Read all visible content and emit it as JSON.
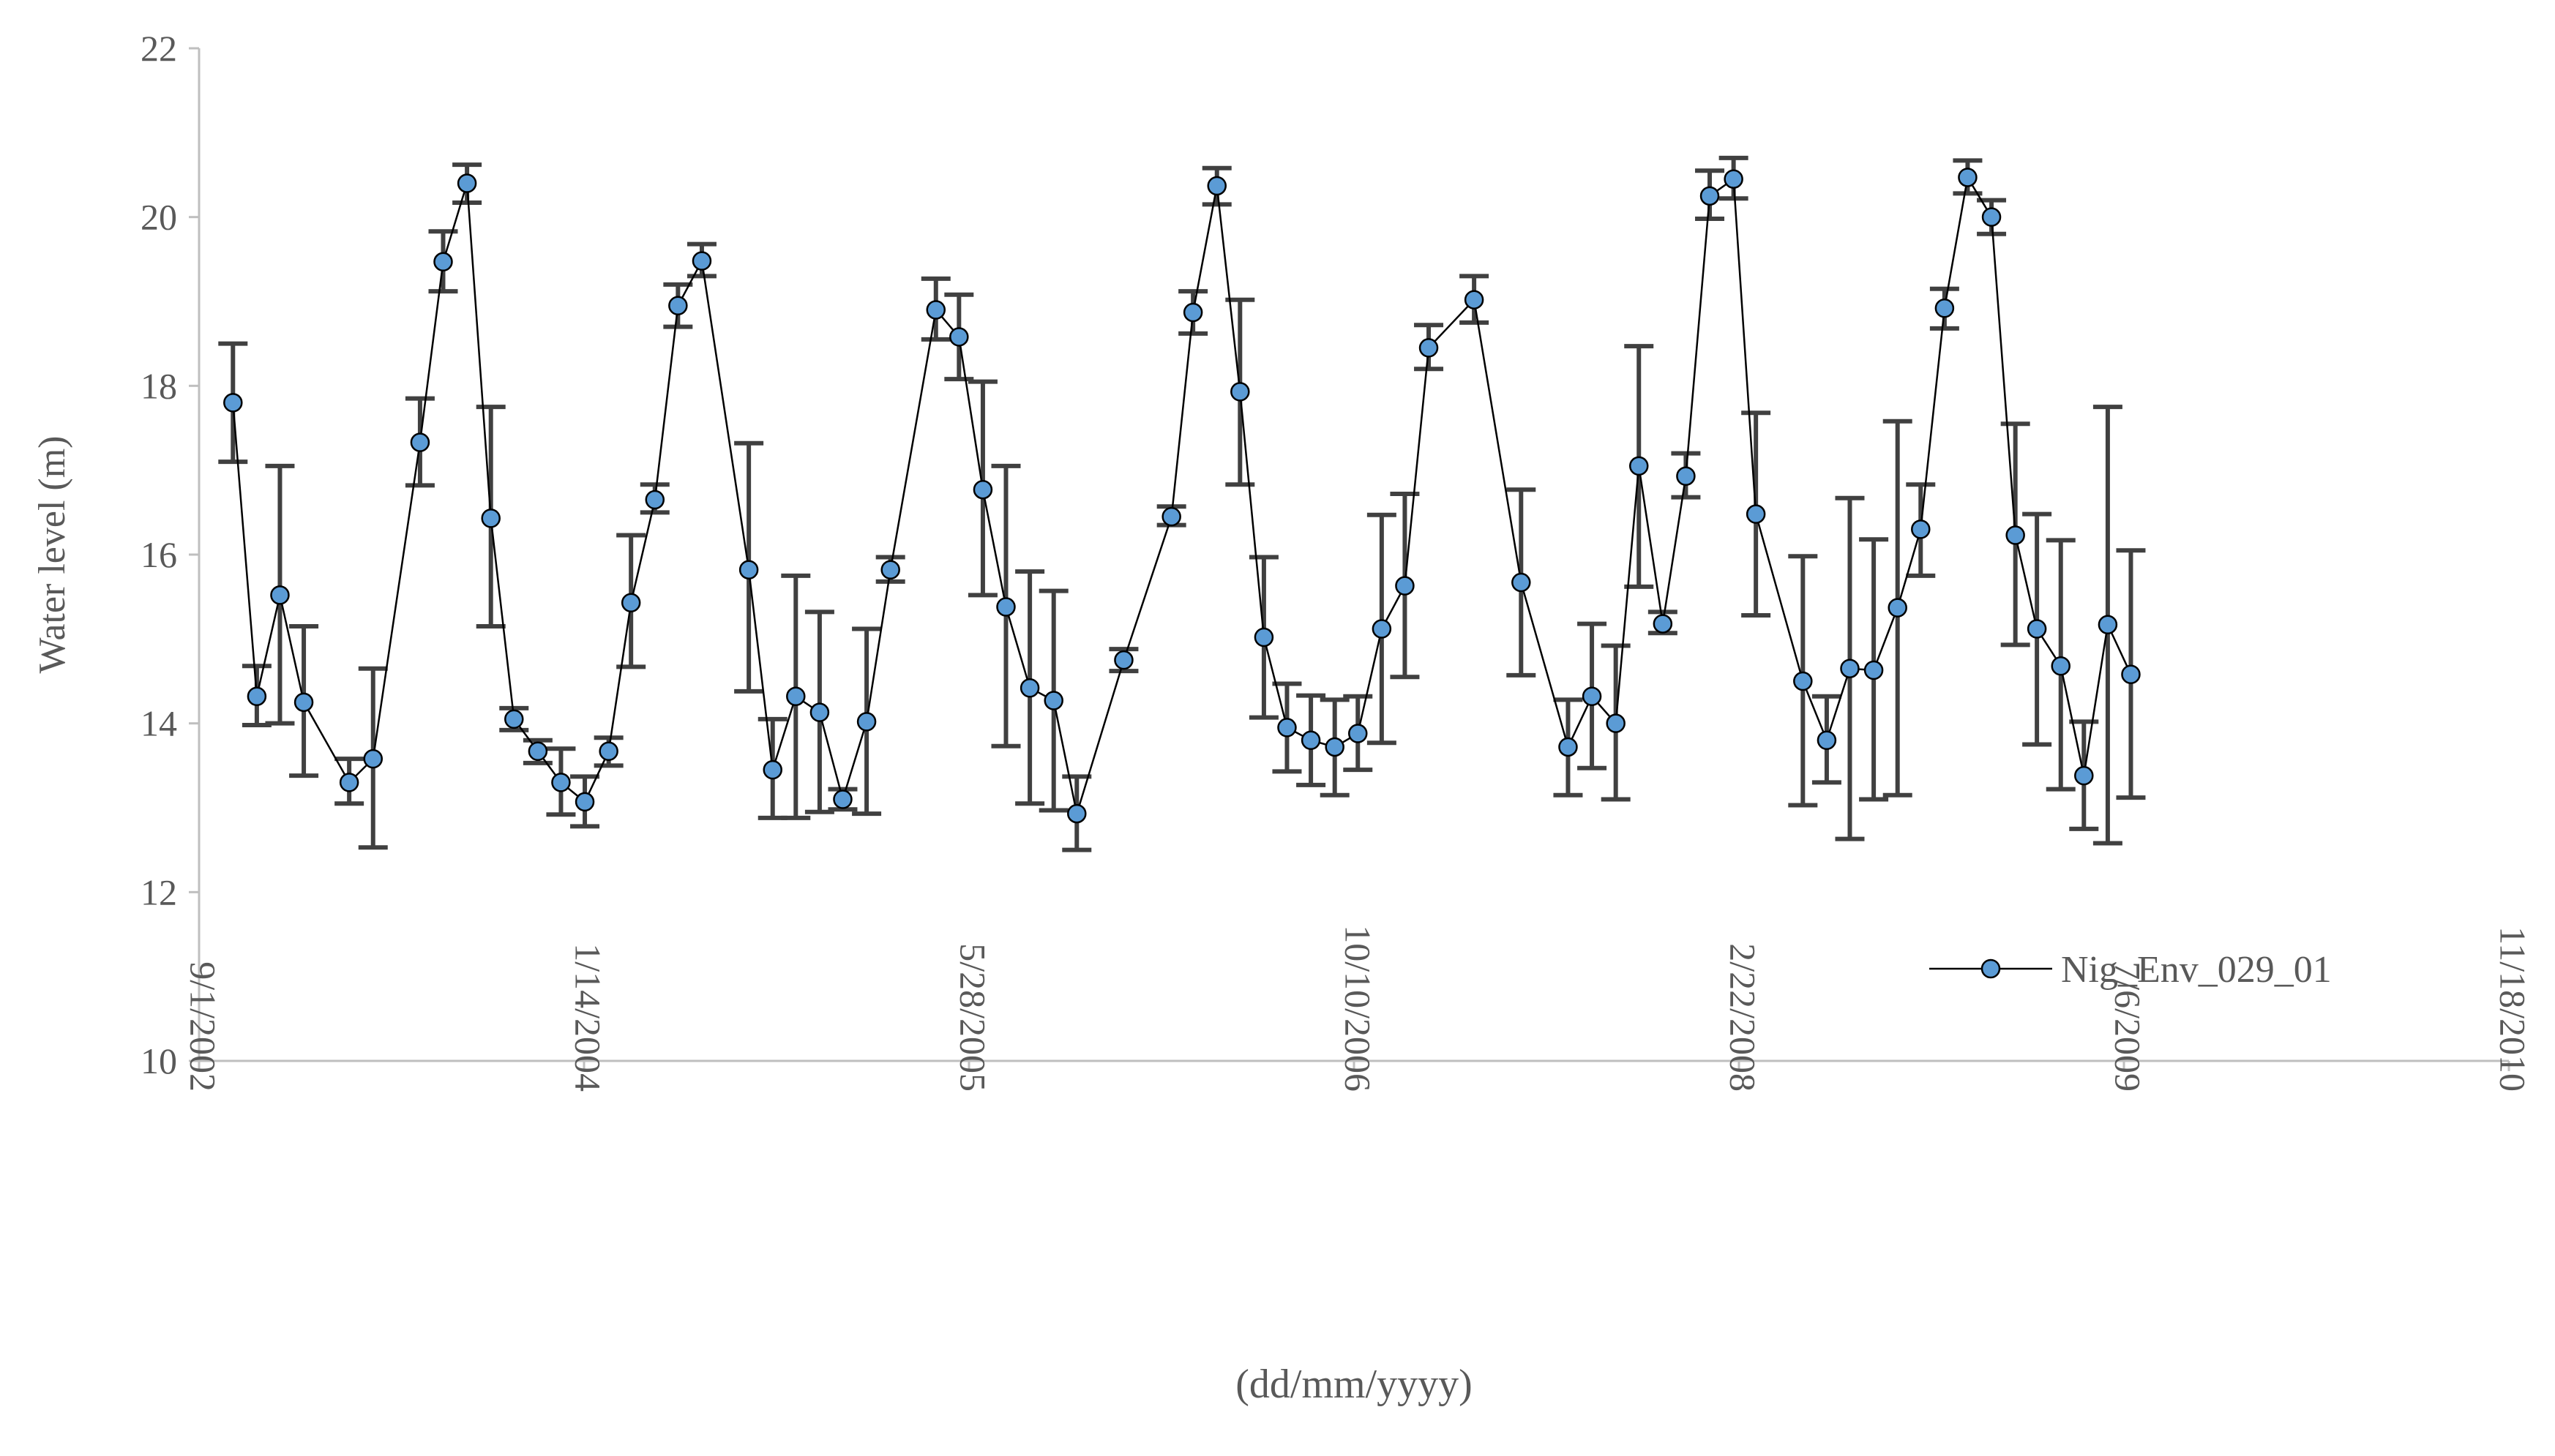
{
  "chart_data": {
    "type": "line",
    "title": "",
    "xlabel": "(dd/mm/yyyy)",
    "ylabel": "Water level (m)",
    "ylim": [
      10,
      22
    ],
    "yticks": [
      10,
      12,
      14,
      16,
      18,
      20,
      22
    ],
    "xlim": [
      "2002-09-01",
      "2010-11-18"
    ],
    "xticks": [
      {
        "label": "9/1/2002",
        "date": "2002-09-01"
      },
      {
        "label": "1/14/2004",
        "date": "2004-01-14"
      },
      {
        "label": "5/28/2005",
        "date": "2005-05-28"
      },
      {
        "label": "10/10/2006",
        "date": "2006-10-10"
      },
      {
        "label": "2/22/2008",
        "date": "2008-02-22"
      },
      {
        "label": "7/6/2009",
        "date": "2009-07-06"
      },
      {
        "label": "11/18/2010",
        "date": "2010-11-18"
      }
    ],
    "grid": false,
    "legend_position": "bottom-right",
    "colors": {
      "marker_fill": "#5b9bd5",
      "line": "#000000",
      "error_bar": "#404040",
      "axis": "#bfbfbf",
      "text": "#595959"
    },
    "series": [
      {
        "name": "Nig_Env_029_01",
        "points": [
          {
            "x": "2002-10-15",
            "y": 17.8,
            "lo": 17.1,
            "hi": 18.5
          },
          {
            "x": "2002-11-15",
            "y": 14.32,
            "lo": 13.98,
            "hi": 14.68
          },
          {
            "x": "2002-12-15",
            "y": 15.52,
            "lo": 14.0,
            "hi": 17.05
          },
          {
            "x": "2003-01-15",
            "y": 14.25,
            "lo": 13.38,
            "hi": 15.15
          },
          {
            "x": "2003-03-15",
            "y": 13.3,
            "lo": 13.05,
            "hi": 13.58
          },
          {
            "x": "2003-04-15",
            "y": 13.58,
            "lo": 12.53,
            "hi": 14.65
          },
          {
            "x": "2003-06-15",
            "y": 17.33,
            "lo": 16.82,
            "hi": 17.85
          },
          {
            "x": "2003-07-15",
            "y": 19.47,
            "lo": 19.12,
            "hi": 19.83
          },
          {
            "x": "2003-08-15",
            "y": 20.4,
            "lo": 20.17,
            "hi": 20.62
          },
          {
            "x": "2003-09-15",
            "y": 16.43,
            "lo": 15.15,
            "hi": 17.75
          },
          {
            "x": "2003-10-15",
            "y": 14.05,
            "lo": 13.92,
            "hi": 14.18
          },
          {
            "x": "2003-11-15",
            "y": 13.67,
            "lo": 13.53,
            "hi": 13.8
          },
          {
            "x": "2003-12-15",
            "y": 13.3,
            "lo": 12.92,
            "hi": 13.7
          },
          {
            "x": "2004-01-15",
            "y": 13.07,
            "lo": 12.78,
            "hi": 13.37
          },
          {
            "x": "2004-02-15",
            "y": 13.67,
            "lo": 13.5,
            "hi": 13.83
          },
          {
            "x": "2004-03-15",
            "y": 15.43,
            "lo": 14.67,
            "hi": 16.23
          },
          {
            "x": "2004-04-15",
            "y": 16.65,
            "lo": 16.5,
            "hi": 16.83
          },
          {
            "x": "2004-05-15",
            "y": 18.95,
            "lo": 18.7,
            "hi": 19.2
          },
          {
            "x": "2004-06-15",
            "y": 19.48,
            "lo": 19.3,
            "hi": 19.68
          },
          {
            "x": "2004-08-15",
            "y": 15.82,
            "lo": 14.38,
            "hi": 17.32
          },
          {
            "x": "2004-09-15",
            "y": 13.45,
            "lo": 12.88,
            "hi": 14.05
          },
          {
            "x": "2004-10-15",
            "y": 14.32,
            "lo": 12.88,
            "hi": 15.75
          },
          {
            "x": "2004-11-15",
            "y": 14.13,
            "lo": 12.95,
            "hi": 15.32
          },
          {
            "x": "2004-12-15",
            "y": 13.1,
            "lo": 12.98,
            "hi": 13.22
          },
          {
            "x": "2005-01-15",
            "y": 14.02,
            "lo": 12.93,
            "hi": 15.12
          },
          {
            "x": "2005-02-15",
            "y": 15.82,
            "lo": 15.68,
            "hi": 15.97
          },
          {
            "x": "2005-04-15",
            "y": 18.9,
            "lo": 18.55,
            "hi": 19.27
          },
          {
            "x": "2005-05-15",
            "y": 18.58,
            "lo": 18.08,
            "hi": 19.08
          },
          {
            "x": "2005-06-15",
            "y": 16.77,
            "lo": 15.52,
            "hi": 18.05
          },
          {
            "x": "2005-07-15",
            "y": 15.38,
            "lo": 13.73,
            "hi": 17.05
          },
          {
            "x": "2005-08-15",
            "y": 14.42,
            "lo": 13.05,
            "hi": 15.8
          },
          {
            "x": "2005-09-15",
            "y": 14.27,
            "lo": 12.97,
            "hi": 15.57
          },
          {
            "x": "2005-10-15",
            "y": 12.93,
            "lo": 12.5,
            "hi": 13.37
          },
          {
            "x": "2005-12-15",
            "y": 14.75,
            "lo": 14.62,
            "hi": 14.88
          },
          {
            "x": "2006-02-15",
            "y": 16.45,
            "lo": 16.35,
            "hi": 16.57
          },
          {
            "x": "2006-03-15",
            "y": 18.87,
            "lo": 18.62,
            "hi": 19.12
          },
          {
            "x": "2006-04-15",
            "y": 20.37,
            "lo": 20.15,
            "hi": 20.58
          },
          {
            "x": "2006-05-15",
            "y": 17.93,
            "lo": 16.83,
            "hi": 19.02
          },
          {
            "x": "2006-06-15",
            "y": 15.02,
            "lo": 14.07,
            "hi": 15.97
          },
          {
            "x": "2006-07-15",
            "y": 13.95,
            "lo": 13.43,
            "hi": 14.47
          },
          {
            "x": "2006-08-15",
            "y": 13.8,
            "lo": 13.27,
            "hi": 14.33
          },
          {
            "x": "2006-09-15",
            "y": 13.72,
            "lo": 13.15,
            "hi": 14.28
          },
          {
            "x": "2006-10-15",
            "y": 13.88,
            "lo": 13.45,
            "hi": 14.32
          },
          {
            "x": "2006-11-15",
            "y": 15.12,
            "lo": 13.77,
            "hi": 16.47
          },
          {
            "x": "2006-12-15",
            "y": 15.63,
            "lo": 14.55,
            "hi": 16.72
          },
          {
            "x": "2007-01-15",
            "y": 18.45,
            "lo": 18.2,
            "hi": 18.72
          },
          {
            "x": "2007-03-15",
            "y": 19.02,
            "lo": 18.75,
            "hi": 19.3
          },
          {
            "x": "2007-05-15",
            "y": 15.67,
            "lo": 14.57,
            "hi": 16.77
          },
          {
            "x": "2007-07-15",
            "y": 13.72,
            "lo": 13.15,
            "hi": 14.28
          },
          {
            "x": "2007-08-15",
            "y": 14.32,
            "lo": 13.47,
            "hi": 15.18
          },
          {
            "x": "2007-09-15",
            "y": 14.0,
            "lo": 13.1,
            "hi": 14.92
          },
          {
            "x": "2007-10-15",
            "y": 17.05,
            "lo": 15.62,
            "hi": 18.47
          },
          {
            "x": "2007-11-15",
            "y": 15.18,
            "lo": 15.07,
            "hi": 15.32
          },
          {
            "x": "2007-12-15",
            "y": 16.93,
            "lo": 16.68,
            "hi": 17.2
          },
          {
            "x": "2008-01-15",
            "y": 20.25,
            "lo": 19.98,
            "hi": 20.55
          },
          {
            "x": "2008-02-15",
            "y": 20.45,
            "lo": 20.22,
            "hi": 20.7
          },
          {
            "x": "2008-03-15",
            "y": 16.48,
            "lo": 15.28,
            "hi": 17.68
          },
          {
            "x": "2008-05-15",
            "y": 14.5,
            "lo": 13.03,
            "hi": 15.98
          },
          {
            "x": "2008-06-15",
            "y": 13.8,
            "lo": 13.3,
            "hi": 14.32
          },
          {
            "x": "2008-07-15",
            "y": 14.65,
            "lo": 12.63,
            "hi": 16.67
          },
          {
            "x": "2008-08-15",
            "y": 14.63,
            "lo": 13.1,
            "hi": 16.18
          },
          {
            "x": "2008-09-15",
            "y": 15.37,
            "lo": 13.15,
            "hi": 17.58
          },
          {
            "x": "2008-10-15",
            "y": 16.3,
            "lo": 15.75,
            "hi": 16.83
          },
          {
            "x": "2008-11-15",
            "y": 18.92,
            "lo": 18.68,
            "hi": 19.15
          },
          {
            "x": "2008-12-15",
            "y": 20.47,
            "lo": 20.28,
            "hi": 20.67
          },
          {
            "x": "2009-01-15",
            "y": 20.0,
            "lo": 19.8,
            "hi": 20.2
          },
          {
            "x": "2009-02-15",
            "y": 16.23,
            "lo": 14.93,
            "hi": 17.55
          },
          {
            "x": "2009-03-15",
            "y": 15.12,
            "lo": 13.75,
            "hi": 16.48
          },
          {
            "x": "2009-04-15",
            "y": 14.68,
            "lo": 13.22,
            "hi": 16.17
          },
          {
            "x": "2009-05-15",
            "y": 13.38,
            "lo": 12.75,
            "hi": 14.02
          },
          {
            "x": "2009-06-15",
            "y": 15.17,
            "lo": 12.58,
            "hi": 17.75
          },
          {
            "x": "2009-07-15",
            "y": 14.58,
            "lo": 13.12,
            "hi": 16.05
          }
        ]
      }
    ]
  }
}
